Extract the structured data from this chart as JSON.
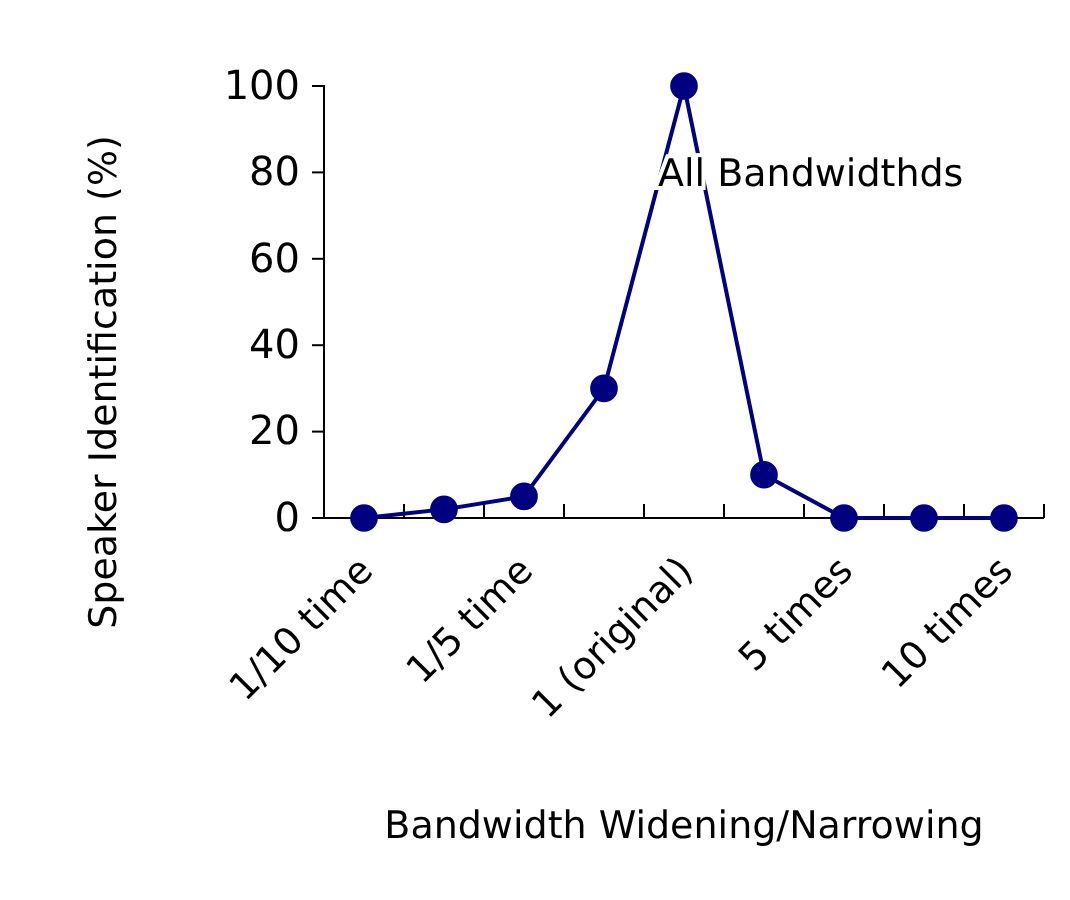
{
  "chart_data": {
    "type": "line",
    "xlabel": "Bandwidth Widening/Narrowing",
    "ylabel": "Speaker Identification (%)",
    "categories": [
      "1/10 time",
      null,
      "1/5 time",
      null,
      "1 (original)",
      null,
      "5 times",
      null,
      "10 times"
    ],
    "series": [
      {
        "name": "All Bandwidthds",
        "color": "#000080",
        "values": [
          0,
          2,
          5,
          30,
          100,
          10,
          0,
          0,
          0
        ]
      }
    ],
    "ylim": [
      0,
      100
    ],
    "yticks": [
      0,
      20,
      40,
      60,
      80,
      100
    ],
    "grid": false,
    "legend": false,
    "marker": "circle",
    "line_style": "solid"
  }
}
